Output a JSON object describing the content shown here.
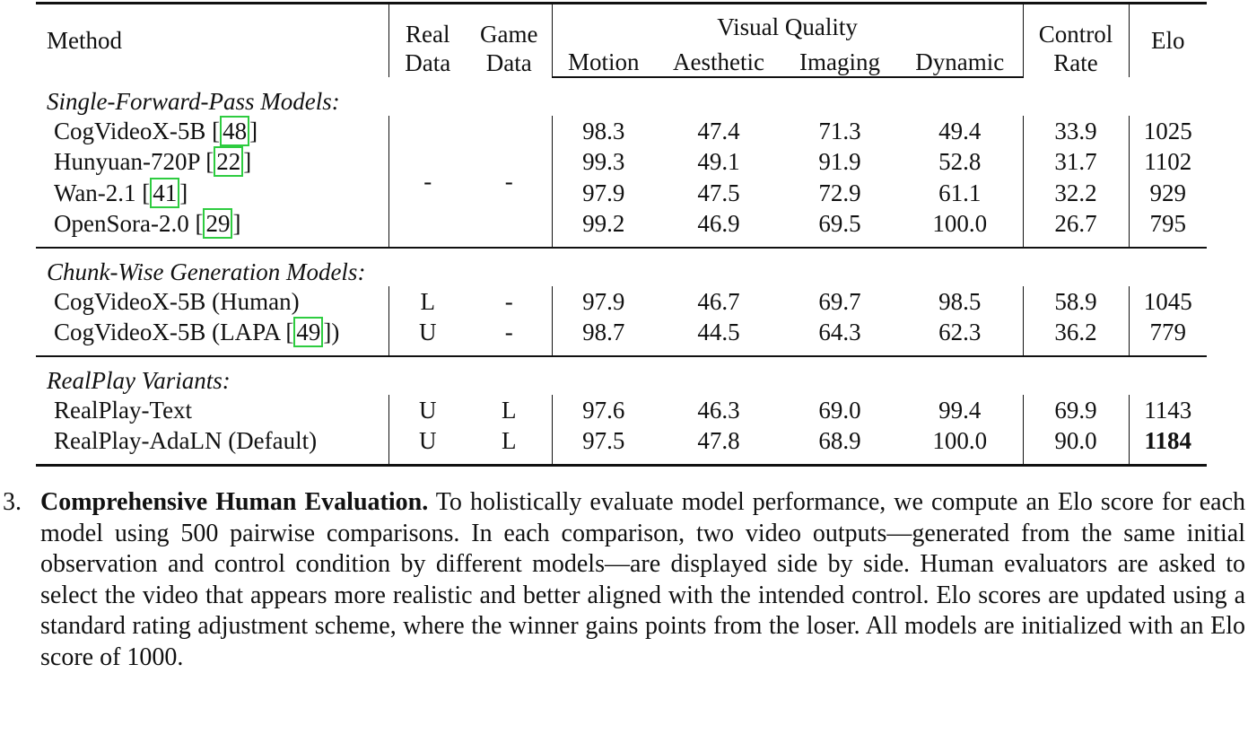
{
  "table": {
    "header": {
      "method": "Method",
      "real": [
        "Real",
        "Data"
      ],
      "game": [
        "Game",
        "Data"
      ],
      "visual_quality": "Visual Quality",
      "metrics": [
        "Motion",
        "Aesthetic",
        "Imaging",
        "Dynamic"
      ],
      "control": [
        "Control",
        "Rate"
      ],
      "elo": "Elo"
    },
    "groups": [
      {
        "title": "Single-Forward-Pass Models:",
        "real": "-",
        "game": "-",
        "rows": [
          {
            "method": "CogVideoX-5B [",
            "ref": "48",
            "suffix": "]",
            "values": [
              "98.3",
              "47.4",
              "71.3",
              "49.4",
              "33.9",
              "1025"
            ]
          },
          {
            "method": "Hunyuan-720P [",
            "ref": "22",
            "suffix": "]",
            "values": [
              "99.3",
              "49.1",
              "91.9",
              "52.8",
              "31.7",
              "1102"
            ]
          },
          {
            "method": "Wan-2.1 [",
            "ref": "41",
            "suffix": "]",
            "values": [
              "97.9",
              "47.5",
              "72.9",
              "61.1",
              "32.2",
              "929"
            ]
          },
          {
            "method": "OpenSora-2.0 [",
            "ref": "29",
            "suffix": "]",
            "values": [
              "99.2",
              "46.9",
              "69.5",
              "100.0",
              "26.7",
              "795"
            ]
          }
        ]
      },
      {
        "title": "Chunk-Wise Generation Models:",
        "rows": [
          {
            "method": "CogVideoX-5B (Human)",
            "real": "L",
            "game": "-",
            "values": [
              "97.9",
              "46.7",
              "69.7",
              "98.5",
              "58.9",
              "1045"
            ]
          },
          {
            "method": "CogVideoX-5B (LAPA [",
            "ref": "49",
            "suffix": "])",
            "real": "U",
            "game": "-",
            "values": [
              "98.7",
              "44.5",
              "64.3",
              "62.3",
              "36.2",
              "779"
            ]
          }
        ]
      },
      {
        "title": "RealPlay Variants:",
        "rows": [
          {
            "method": "RealPlay-Text",
            "real": "U",
            "game": "L",
            "values": [
              "97.6",
              "46.3",
              "69.0",
              "99.4",
              "69.9",
              "1143"
            ]
          },
          {
            "method": "RealPlay-AdaLN (Default)",
            "real": "U",
            "game": "L",
            "values": [
              "97.5",
              "47.8",
              "68.9",
              "100.0",
              "90.0",
              "1184"
            ],
            "bold_last": true
          }
        ]
      }
    ]
  },
  "paragraph": {
    "number": "3.",
    "heading": "Comprehensive Human Evaluation.",
    "text": "To holistically evaluate model performance, we compute an Elo score for each model using 500 pairwise comparisons. In each comparison, two video outputs—generated from the same initial observation and control condition by different models—are displayed side by side. Human evaluators are asked to select the video that appears more realistic and better aligned with the intended control. Elo scores are updated using a standard rating adjustment scheme, where the winner gains points from the loser. All models are initialized with an Elo score of 1000."
  }
}
